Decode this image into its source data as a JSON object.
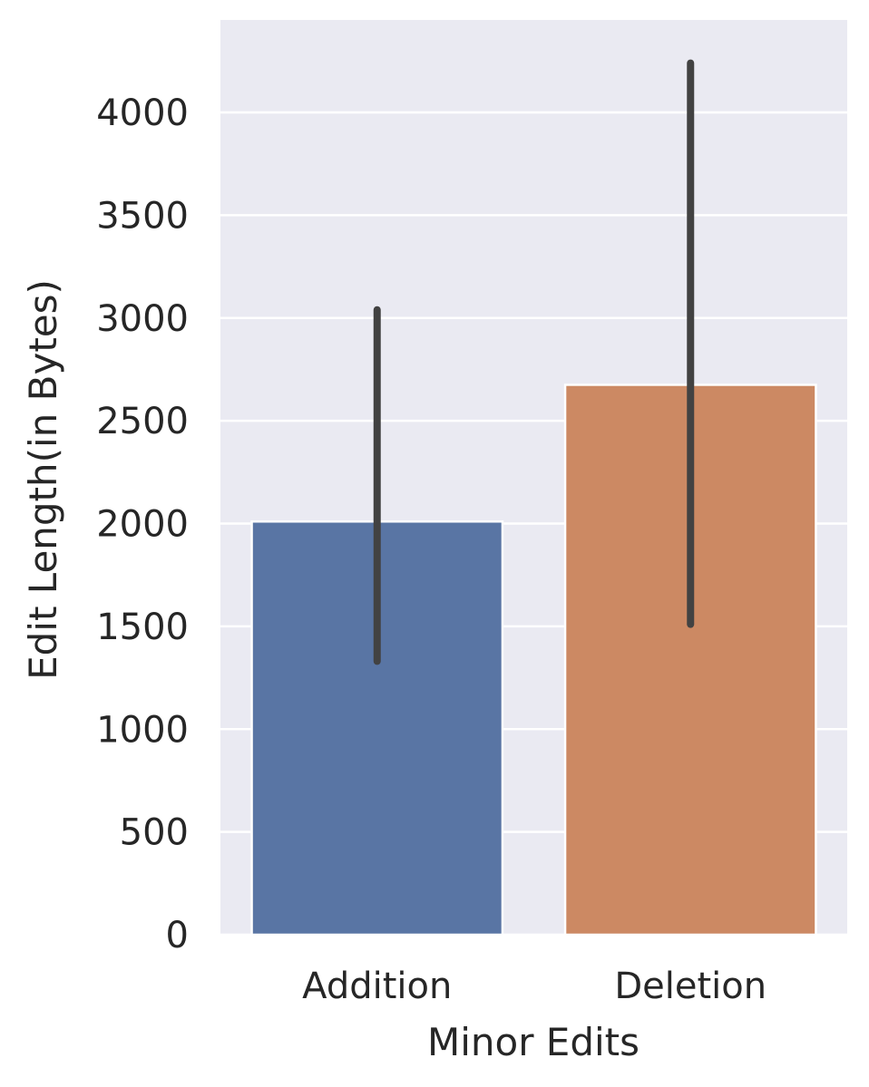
{
  "chart_data": {
    "type": "bar",
    "title": "",
    "xlabel": "Minor Edits",
    "ylabel": "Edit Length(in Bytes)",
    "categories": [
      "Addition",
      "Deletion"
    ],
    "values": [
      2010,
      2675
    ],
    "error_bars": [
      {
        "low": 1330,
        "high": 3040
      },
      {
        "low": 1510,
        "high": 4240
      }
    ],
    "ylim": [
      0,
      4450
    ],
    "yticks": [
      0,
      500,
      1000,
      1500,
      2000,
      2500,
      3000,
      3500,
      4000
    ],
    "ytick_labels": [
      "0",
      "500",
      "1000",
      "1500",
      "2000",
      "2500",
      "3000",
      "3500",
      "4000"
    ],
    "grid": true,
    "legend": "none",
    "colors": {
      "background": "#eaeaf2",
      "grid": "#ffffff",
      "bars": [
        "#5975a4",
        "#cc8963"
      ],
      "error_bar": "#424242",
      "text": "#262626"
    }
  }
}
